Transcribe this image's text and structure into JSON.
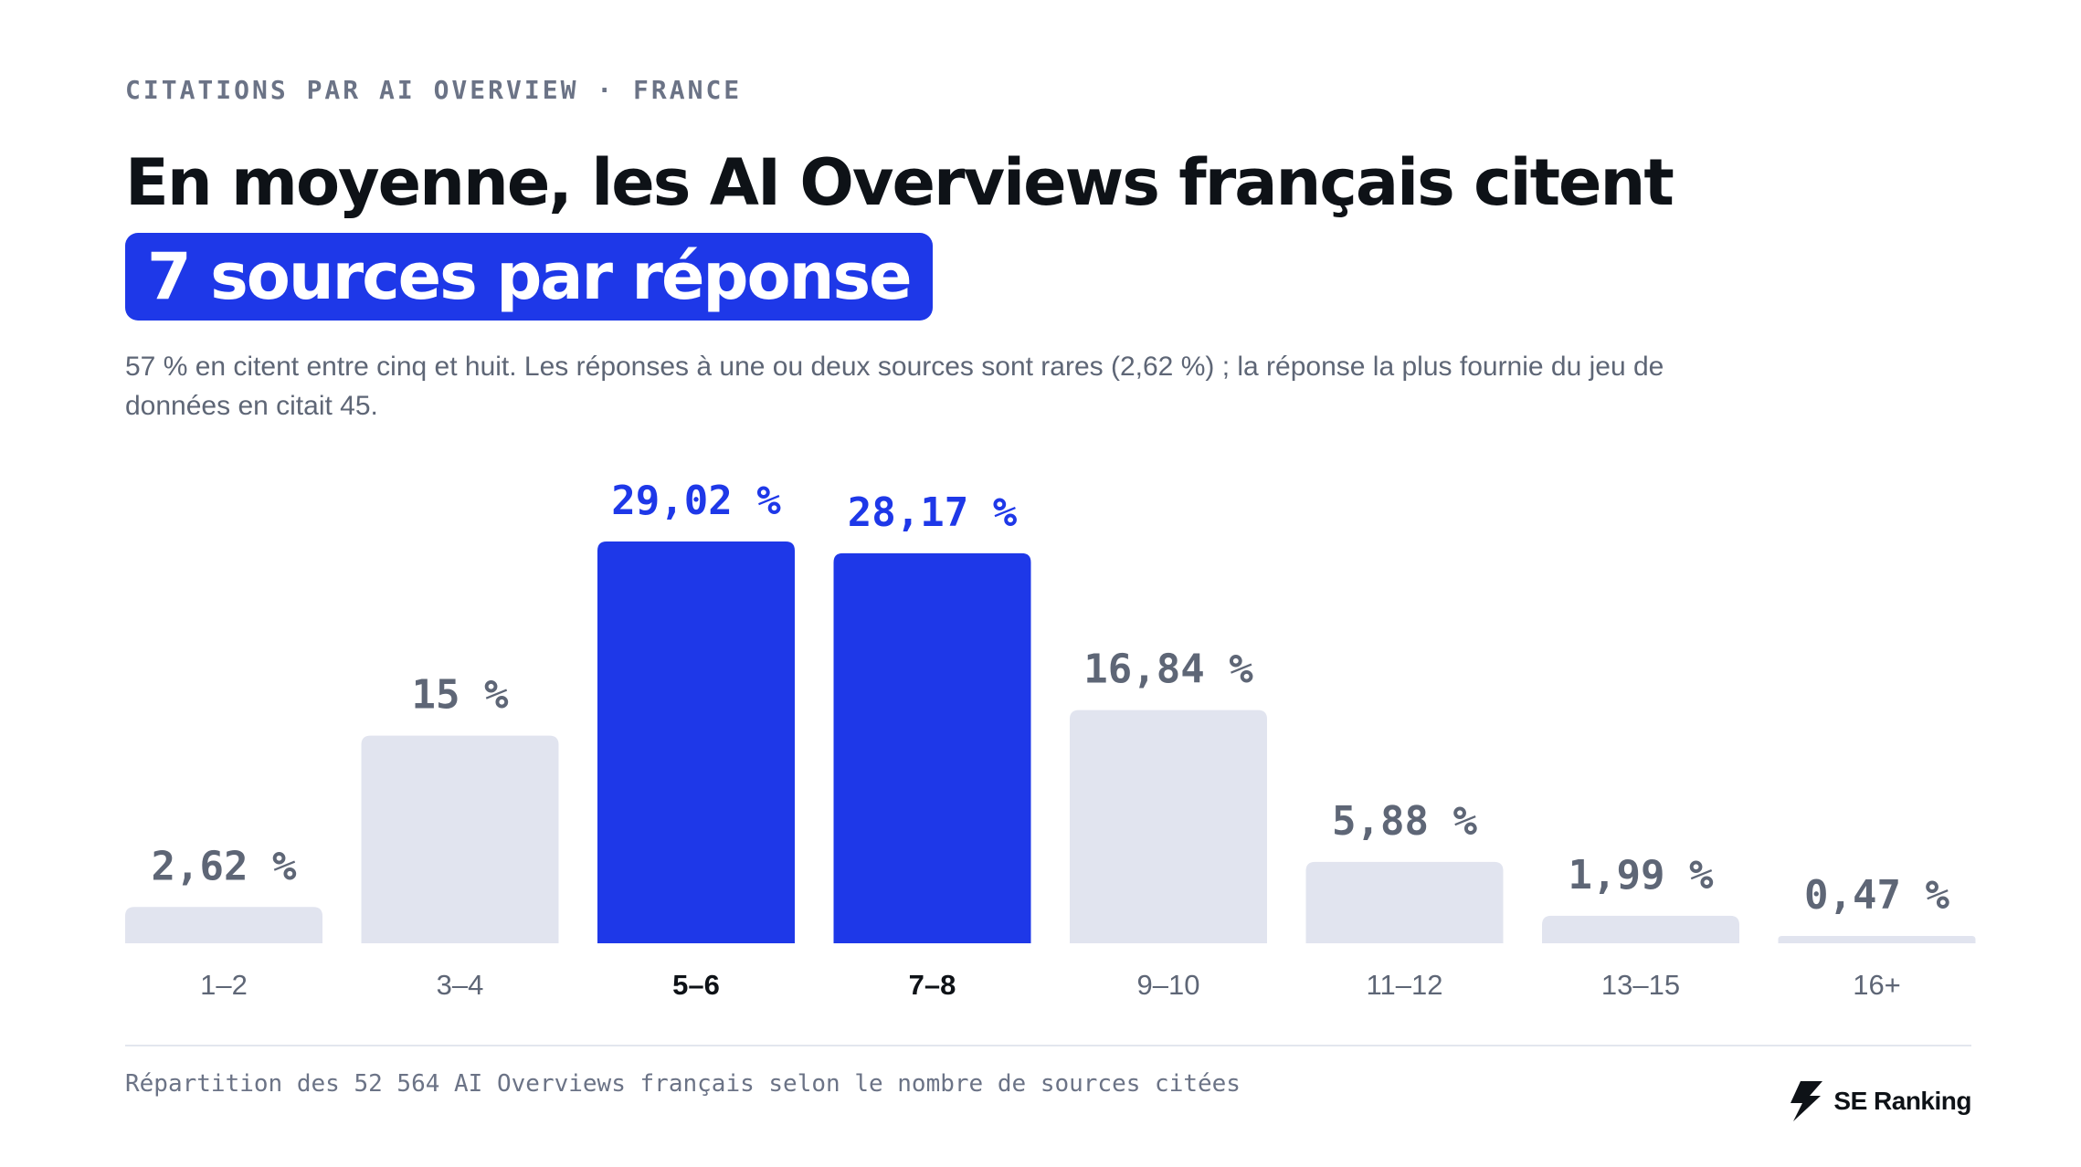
{
  "header": {
    "eyebrow": "CITATIONS PAR AI OVERVIEW · FRANCE",
    "headline": "En moyenne, les AI Overviews français citent",
    "highlight": "7 sources par réponse",
    "subtitle": "57 % en citent entre cinq et huit. Les réponses à une ou deux sources sont rares (2,62 %) ; la réponse la plus fournie du jeu de données en citait 45."
  },
  "footer": {
    "caption": "Répartition des 52 564 AI Overviews français selon le nombre de sources citées",
    "brand": "SE Ranking",
    "brand_icon": "se-ranking-bolt-icon"
  },
  "colors": {
    "accent": "#1e38e8",
    "bar_muted": "#e1e4ef",
    "label_muted": "#5e6676",
    "text_dark": "#0e1217"
  },
  "chart_data": {
    "type": "bar",
    "categories": [
      "1–2",
      "3–4",
      "5–6",
      "7–8",
      "9–10",
      "11–12",
      "13–15",
      "16+"
    ],
    "values": [
      2.62,
      15,
      29.02,
      28.17,
      16.84,
      5.88,
      1.99,
      0.47
    ],
    "value_labels": [
      "2,62 %",
      "15 %",
      "29,02 %",
      "28,17 %",
      "16,84 %",
      "5,88 %",
      "1,99 %",
      "0,47 %"
    ],
    "highlighted": [
      false,
      false,
      true,
      true,
      false,
      false,
      false,
      false
    ],
    "unit": "%",
    "ylim": [
      0,
      29.02
    ],
    "grid": false,
    "legend": "none"
  }
}
